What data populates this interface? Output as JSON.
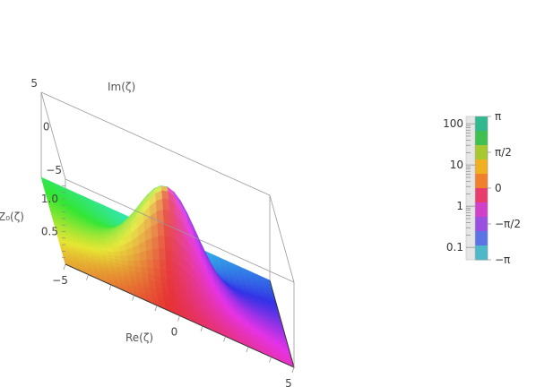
{
  "chart_data": {
    "type": "surface3d",
    "title": "",
    "function_label": "Z₀(ζ)",
    "x_label": "Re(ζ)",
    "y_label": "Im(ζ)",
    "z_label": "Z₀(ζ)",
    "xlim": [
      -5,
      5
    ],
    "ylim": [
      -5,
      5
    ],
    "zlim": [
      0,
      1.3
    ],
    "x_ticks": [
      {
        "value": -5,
        "label": "−5"
      },
      {
        "value": 0,
        "label": "0"
      },
      {
        "value": 5,
        "label": "5"
      }
    ],
    "y_ticks": [
      {
        "value": -5,
        "label": "−5"
      },
      {
        "value": 0,
        "label": "0"
      },
      {
        "value": 5,
        "label": "5"
      }
    ],
    "z_ticks": [
      {
        "value": 0.5,
        "label": "0.5"
      },
      {
        "value": 1.0,
        "label": "1.0"
      }
    ],
    "peak": {
      "re": 0,
      "im": 0,
      "height": 1.3
    },
    "coloring": "argument (phase) of Z₀(ζ)",
    "colorbar": {
      "magnitude_scale": "log",
      "magnitude_ticks": [
        {
          "value": 100,
          "label": "100"
        },
        {
          "value": 10,
          "label": "10"
        },
        {
          "value": 1,
          "label": "1"
        },
        {
          "value": 0.1,
          "label": "0.1"
        }
      ],
      "phase_ticks": [
        {
          "value": 3.1416,
          "label": "π"
        },
        {
          "value": 1.5708,
          "label": "π/2"
        },
        {
          "value": 0,
          "label": "0"
        },
        {
          "value": -1.5708,
          "label": "−π/2"
        },
        {
          "value": -3.1416,
          "label": "−π"
        }
      ],
      "phase_colors": [
        "#4db8c8",
        "#5a74e6",
        "#9a50e0",
        "#d040c8",
        "#e83c6c",
        "#f0802c",
        "#f0b020",
        "#a8c830",
        "#40c050",
        "#30b890"
      ]
    },
    "grid": false,
    "legend_position": "right"
  }
}
